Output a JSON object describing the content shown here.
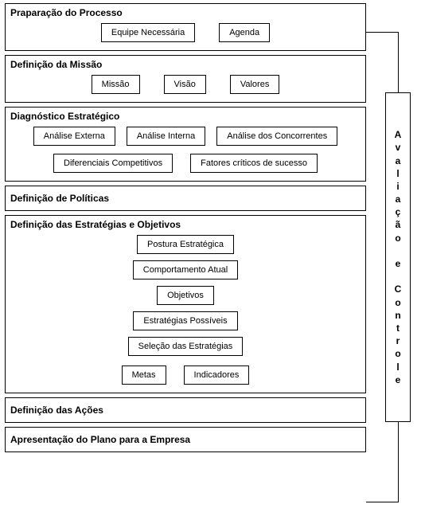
{
  "type": "flowchart",
  "background_color": "#ffffff",
  "border_color": "#000000",
  "box_font_size": 11,
  "title_font_size": 12,
  "title_font_weight": "bold",
  "phases": [
    {
      "title": "Praparação do Processo",
      "rows": [
        {
          "gap": "wide",
          "items": [
            "Equipe Necessária",
            "Agenda"
          ]
        }
      ]
    },
    {
      "title": "Definição da Missão",
      "rows": [
        {
          "gap": "wide",
          "items": [
            "Missão",
            "Visão",
            "Valores"
          ]
        }
      ]
    },
    {
      "title": "Diagnóstico Estratégico",
      "rows": [
        {
          "gap": "tight",
          "items": [
            "Análise Externa",
            "Análise Interna",
            "Análise dos Concorrentes"
          ]
        },
        {
          "gap": "normal",
          "items": [
            "Diferenciais Competitivos",
            "Fatores críticos de sucesso"
          ]
        }
      ]
    },
    {
      "title": "Definição de Políticas",
      "compact": true,
      "rows": []
    },
    {
      "title": "Definição das Estratégias e Objetivos",
      "stack": [
        "Postura Estratégica",
        "Comportamento Atual",
        "Objetivos",
        "Estratégias Possíveis",
        "Seleção das Estratégias"
      ],
      "rows": [
        {
          "gap": "normal",
          "items": [
            "Metas",
            "Indicadores"
          ]
        }
      ]
    },
    {
      "title": "Definição das Ações",
      "compact": true,
      "rows": []
    },
    {
      "title": "Apresentação do Plano para a Empresa",
      "compact": true,
      "rows": []
    }
  ],
  "side_box": {
    "label": "Avaliação e Controle",
    "letters": [
      "A",
      "v",
      "a",
      "l",
      "i",
      "a",
      "ç",
      "ã",
      "o",
      "",
      "e",
      "",
      "C",
      "o",
      "n",
      "t",
      "r",
      "o",
      "l",
      "e"
    ]
  }
}
